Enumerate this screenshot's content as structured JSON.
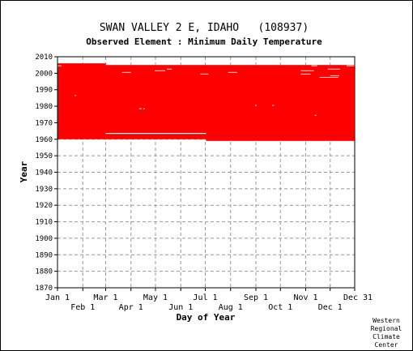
{
  "chart_data": {
    "type": "heatmap",
    "title": "SWAN VALLEY 2 E, IDAHO   (108937)",
    "subtitle": "Observed Element : Minimum Daily Temperature",
    "xlabel": "Day of Year",
    "ylabel": "Year",
    "xlim": [
      1,
      365
    ],
    "ylim": [
      1870,
      2010
    ],
    "yticks": [
      2010,
      2000,
      1990,
      1980,
      1970,
      1960,
      1950,
      1940,
      1930,
      1920,
      1910,
      1900,
      1890,
      1880,
      1870
    ],
    "xticks_upper": [
      {
        "label": "Jan 1",
        "day": 1
      },
      {
        "label": "Mar 1",
        "day": 60
      },
      {
        "label": "May 1",
        "day": 121
      },
      {
        "label": "Jul 1",
        "day": 182
      },
      {
        "label": "Sep 1",
        "day": 244
      },
      {
        "label": "Nov 1",
        "day": 305
      },
      {
        "label": "Dec 31",
        "day": 365
      }
    ],
    "xticks_lower": [
      {
        "label": "Feb 1",
        "day": 32
      },
      {
        "label": "Apr 1",
        "day": 91
      },
      {
        "label": "Jun 1",
        "day": 152
      },
      {
        "label": "Aug 1",
        "day": 213
      },
      {
        "label": "Oct 1",
        "day": 274
      },
      {
        "label": "Dec 1",
        "day": 335
      }
    ],
    "grid": true,
    "data_color": "#ff0000",
    "observed_blocks": [
      {
        "day_start": 1,
        "day_end": 59,
        "year_start": 1960,
        "year_end": 2005
      },
      {
        "day_start": 60,
        "day_end": 182,
        "year_start": 1960,
        "year_end": 2004
      },
      {
        "day_start": 183,
        "day_end": 365,
        "year_start": 1959,
        "year_end": 2004
      }
    ],
    "missing_segments": [
      {
        "year": 2004,
        "day_start": 1,
        "day_end": 5
      },
      {
        "year": 2004,
        "day_start": 312,
        "day_end": 318
      },
      {
        "year": 2004,
        "day_start": 355,
        "day_end": 365
      },
      {
        "year": 2002,
        "day_start": 332,
        "day_end": 346
      },
      {
        "year": 2001,
        "day_start": 299,
        "day_end": 314
      },
      {
        "year": 2001,
        "day_start": 120,
        "day_end": 132
      },
      {
        "year": 2002,
        "day_start": 135,
        "day_end": 140
      },
      {
        "year": 2000,
        "day_start": 80,
        "day_end": 90
      },
      {
        "year": 2000,
        "day_start": 210,
        "day_end": 220
      },
      {
        "year": 1999,
        "day_start": 176,
        "day_end": 185
      },
      {
        "year": 1999,
        "day_start": 299,
        "day_end": 310
      },
      {
        "year": 1998,
        "day_start": 335,
        "day_end": 345
      },
      {
        "year": 1997,
        "day_start": 322,
        "day_end": 344
      },
      {
        "year": 1986,
        "day_start": 22,
        "day_end": 23
      },
      {
        "year": 1980,
        "day_start": 243,
        "day_end": 244
      },
      {
        "year": 1980,
        "day_start": 264,
        "day_end": 265
      },
      {
        "year": 1978,
        "day_start": 101,
        "day_end": 103
      },
      {
        "year": 1978,
        "day_start": 106,
        "day_end": 107
      },
      {
        "year": 1974,
        "day_start": 316,
        "day_end": 317
      },
      {
        "year": 1963,
        "day_start": 60,
        "day_end": 182
      }
    ]
  },
  "credit": [
    "Western",
    "Regional",
    "Climate",
    "Center"
  ]
}
